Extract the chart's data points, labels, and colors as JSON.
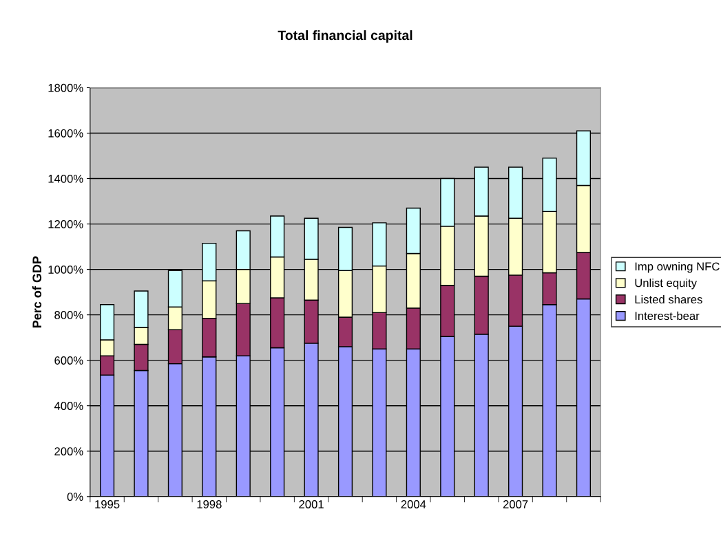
{
  "chart_data": {
    "type": "bar",
    "stacked": true,
    "title": "Total financial capital",
    "ylabel": "Perc of GDP",
    "categories": [
      "1995",
      null,
      null,
      "1998",
      null,
      null,
      "2001",
      null,
      null,
      "2004",
      null,
      null,
      "2007",
      null,
      null
    ],
    "series": [
      {
        "name": "Interest-bear",
        "color": "#9999ff",
        "values": [
          535,
          555,
          585,
          615,
          620,
          655,
          675,
          660,
          650,
          650,
          705,
          715,
          750,
          845,
          870
        ]
      },
      {
        "name": "Listed shares",
        "color": "#993366",
        "values": [
          85,
          115,
          150,
          170,
          230,
          220,
          190,
          130,
          160,
          180,
          225,
          255,
          225,
          140,
          205
        ]
      },
      {
        "name": "Unlist equity",
        "color": "#ffffcc",
        "values": [
          70,
          75,
          100,
          165,
          150,
          180,
          180,
          205,
          205,
          240,
          260,
          265,
          250,
          270,
          295
        ]
      },
      {
        "name": "Imp owning NFC",
        "color": "#ccffff",
        "values": [
          155,
          160,
          160,
          165,
          170,
          180,
          180,
          190,
          190,
          200,
          210,
          215,
          225,
          235,
          240
        ]
      }
    ],
    "ylim": [
      0,
      1800
    ],
    "yticks": [
      {
        "value": 0,
        "label": "0%"
      },
      {
        "value": 200,
        "label": "200%"
      },
      {
        "value": 400,
        "label": "400%"
      },
      {
        "value": 600,
        "label": "600%"
      },
      {
        "value": 800,
        "label": "800%"
      },
      {
        "value": 1000,
        "label": "1000%"
      },
      {
        "value": 1200,
        "label": "1200%"
      },
      {
        "value": 1400,
        "label": "1400%"
      },
      {
        "value": 1600,
        "label": "1600%"
      },
      {
        "value": 1800,
        "label": "1800%"
      }
    ],
    "grid": "y",
    "legend": "right"
  }
}
